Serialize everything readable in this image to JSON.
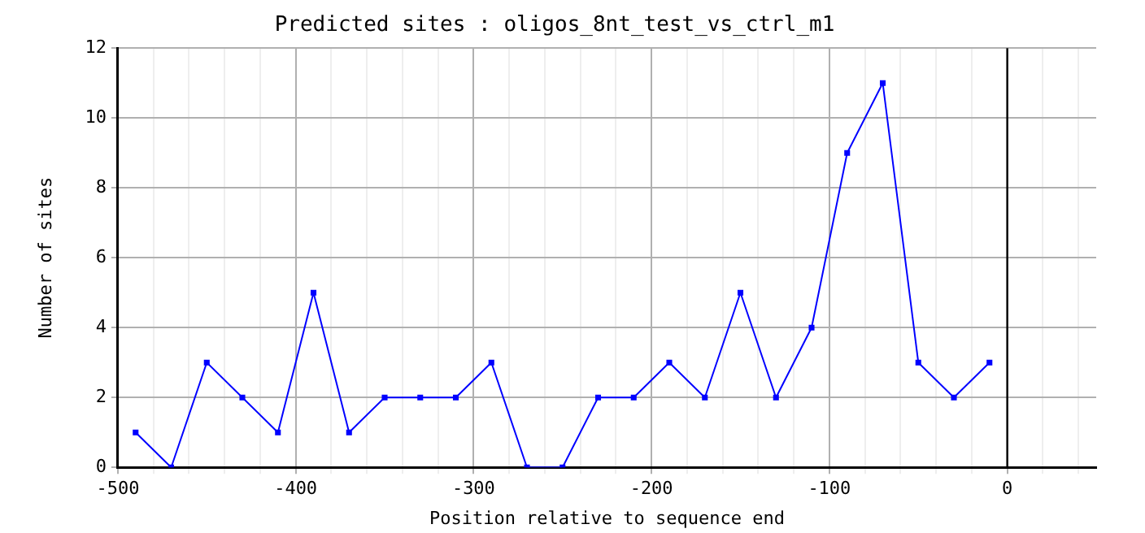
{
  "chart_data": {
    "type": "line",
    "title": "Predicted sites : oligos_8nt_test_vs_ctrl_m1",
    "xlabel": "Position relative to sequence end",
    "ylabel": "Number of sites",
    "x": [
      -490,
      -470,
      -450,
      -430,
      -410,
      -390,
      -370,
      -350,
      -330,
      -310,
      -290,
      -270,
      -250,
      -230,
      -210,
      -190,
      -170,
      -150,
      -130,
      -110,
      -90,
      -70,
      -50,
      -30,
      -10
    ],
    "series": [
      {
        "color": "#0000ff",
        "values": [
          1,
          0,
          3,
          2,
          1,
          5,
          1,
          2,
          2,
          2,
          3,
          0,
          0,
          2,
          2,
          3,
          2,
          5,
          2,
          4,
          9,
          11,
          3,
          2,
          3
        ]
      }
    ],
    "xlim": [
      -500,
      50
    ],
    "xticks": [
      -500,
      {
        "value": -480,
        "label": null
      },
      {
        "value": -460,
        "label": null
      },
      {
        "value": -440,
        "label": null
      },
      {
        "value": -420,
        "label": null
      },
      -400,
      {
        "value": -380,
        "label": null
      },
      {
        "value": -360,
        "label": null
      },
      {
        "value": -340,
        "label": null
      },
      {
        "value": -320,
        "label": null
      },
      -300,
      {
        "value": -280,
        "label": null
      },
      {
        "value": -260,
        "label": null
      },
      {
        "value": -240,
        "label": null
      },
      {
        "value": -220,
        "label": null
      },
      -200,
      {
        "value": -180,
        "label": null
      },
      {
        "value": -160,
        "label": null
      },
      {
        "value": -140,
        "label": null
      },
      {
        "value": -120,
        "label": null
      },
      -100,
      {
        "value": -80,
        "label": null
      },
      {
        "value": -60,
        "label": null
      },
      {
        "value": -40,
        "label": null
      },
      {
        "value": -20,
        "label": null
      },
      0,
      {
        "value": 20,
        "label": null
      },
      {
        "value": 40,
        "label": null
      }
    ],
    "ylim": [
      0,
      12
    ],
    "yticks": [
      0,
      2,
      4,
      6,
      8,
      10,
      12
    ],
    "ref_lines": [
      {
        "axis": "x",
        "value": 0,
        "color": "#000000"
      }
    ],
    "grid": true,
    "marker": "square",
    "line_style": "solid",
    "legend": false
  }
}
